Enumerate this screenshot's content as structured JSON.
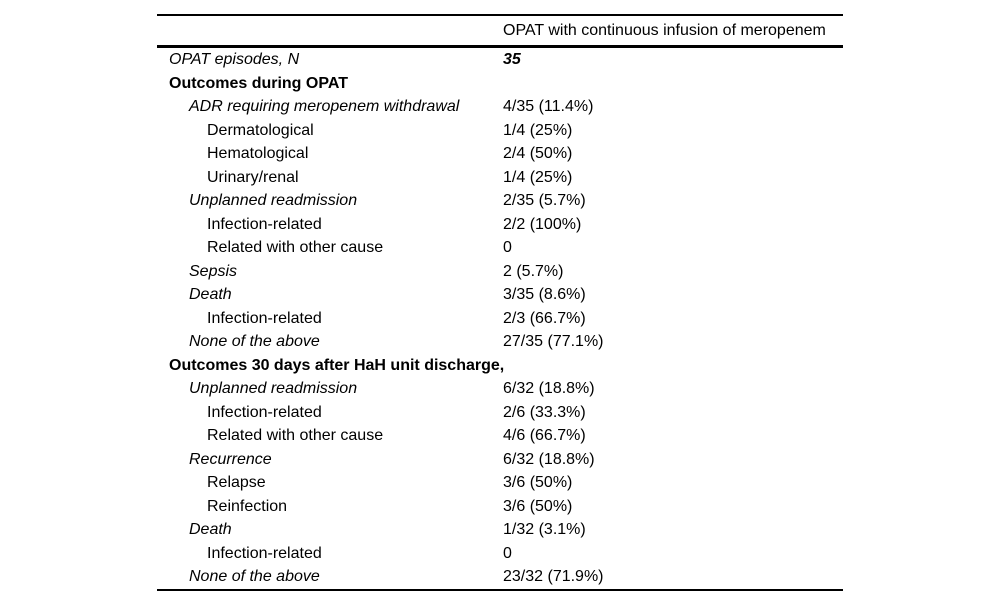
{
  "table": {
    "column_header": "OPAT with continuous infusion of meropenem",
    "rows": [
      {
        "label": "OPAT episodes, N",
        "value": "35",
        "indent": 0,
        "label_style": "italic",
        "value_style": "bold-italic"
      },
      {
        "label": "Outcomes during OPAT",
        "value": "",
        "indent": 0,
        "label_style": "bold",
        "value_style": "normal"
      },
      {
        "label": "ADR requiring meropenem withdrawal",
        "value": "4/35 (11.4%)",
        "indent": 1,
        "label_style": "italic",
        "value_style": "normal"
      },
      {
        "label": "Dermatological",
        "value": "1/4 (25%)",
        "indent": 2,
        "label_style": "normal",
        "value_style": "normal"
      },
      {
        "label": "Hematological",
        "value": "2/4 (50%)",
        "indent": 2,
        "label_style": "normal",
        "value_style": "normal"
      },
      {
        "label": "Urinary/renal",
        "value": "1/4 (25%)",
        "indent": 2,
        "label_style": "normal",
        "value_style": "normal"
      },
      {
        "label": "Unplanned readmission",
        "value": "2/35 (5.7%)",
        "indent": 1,
        "label_style": "italic",
        "value_style": "normal"
      },
      {
        "label": "Infection-related",
        "value": "2/2 (100%)",
        "indent": 2,
        "label_style": "normal",
        "value_style": "normal"
      },
      {
        "label": "Related with other cause",
        "value": "0",
        "indent": 2,
        "label_style": "normal",
        "value_style": "normal"
      },
      {
        "label": "Sepsis",
        "value": "2 (5.7%)",
        "indent": 1,
        "label_style": "italic",
        "value_style": "normal"
      },
      {
        "label": "Death",
        "value": "3/35 (8.6%)",
        "indent": 1,
        "label_style": "italic",
        "value_style": "normal"
      },
      {
        "label": "Infection-related",
        "value": "2/3 (66.7%)",
        "indent": 2,
        "label_style": "normal",
        "value_style": "normal"
      },
      {
        "label": "None of the above",
        "value": "27/35 (77.1%)",
        "indent": 1,
        "label_style": "italic",
        "value_style": "normal"
      },
      {
        "label": "Outcomes 30 days after HaH unit discharge,",
        "value": "",
        "indent": 0,
        "label_style": "bold",
        "value_style": "normal"
      },
      {
        "label": "Unplanned readmission",
        "value": "6/32 (18.8%)",
        "indent": 1,
        "label_style": "italic",
        "value_style": "normal"
      },
      {
        "label": "Infection-related",
        "value": "2/6 (33.3%)",
        "indent": 2,
        "label_style": "normal",
        "value_style": "normal"
      },
      {
        "label": "Related with other cause",
        "value": "4/6 (66.7%)",
        "indent": 2,
        "label_style": "normal",
        "value_style": "normal"
      },
      {
        "label": "Recurrence",
        "value": "6/32 (18.8%)",
        "indent": 1,
        "label_style": "italic",
        "value_style": "normal"
      },
      {
        "label": "Relapse",
        "value": "3/6 (50%)",
        "indent": 2,
        "label_style": "normal",
        "value_style": "normal"
      },
      {
        "label": "Reinfection",
        "value": "3/6 (50%)",
        "indent": 2,
        "label_style": "normal",
        "value_style": "normal"
      },
      {
        "label": "Death",
        "value": "1/32 (3.1%)",
        "indent": 1,
        "label_style": "italic",
        "value_style": "normal"
      },
      {
        "label": "Infection-related",
        "value": "0",
        "indent": 2,
        "label_style": "normal",
        "value_style": "normal"
      },
      {
        "label": "None of the above",
        "value": "23/32 (71.9%)",
        "indent": 1,
        "label_style": "italic",
        "value_style": "normal"
      }
    ]
  }
}
